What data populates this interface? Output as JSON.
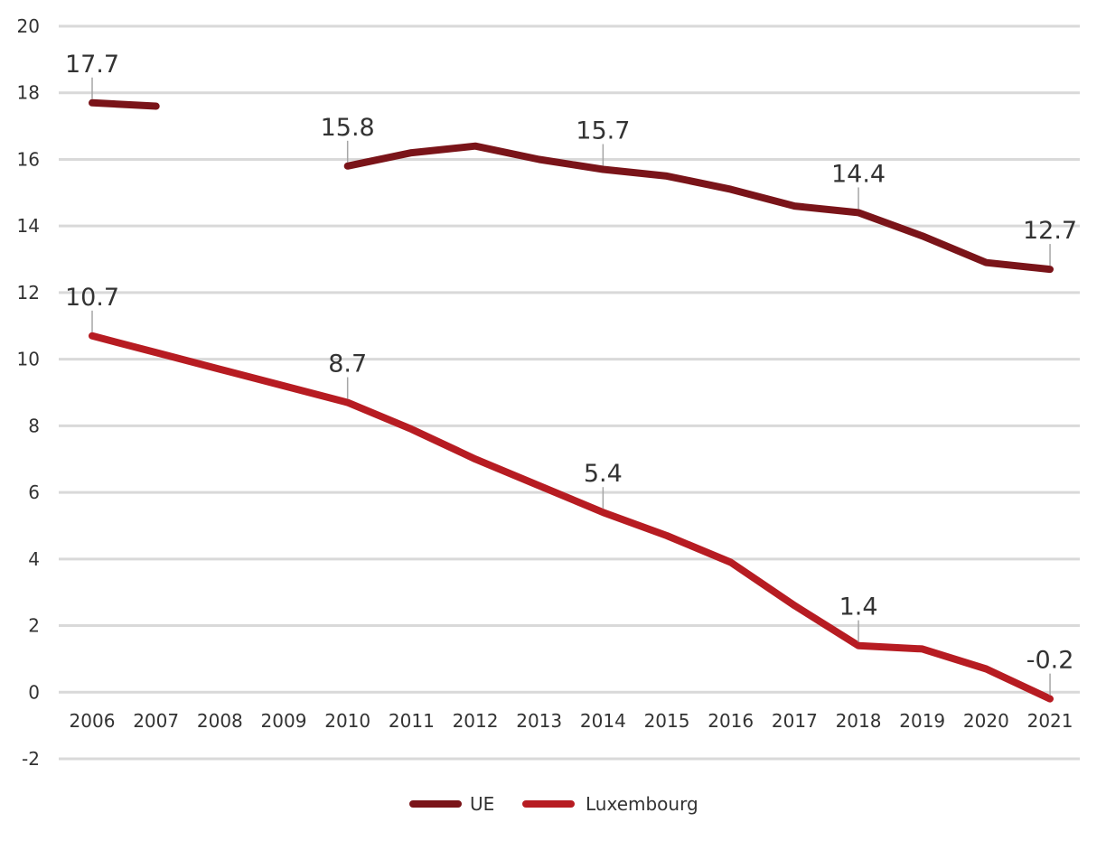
{
  "chart_data": {
    "type": "line",
    "title": "",
    "xlabel": "",
    "ylabel": "",
    "ylim": [
      -2,
      20
    ],
    "yticks": [
      "20",
      "18",
      "16",
      "14",
      "12",
      "10",
      "8",
      "6",
      "4",
      "2",
      "0",
      "-2"
    ],
    "categories": [
      "2006",
      "2007",
      "2008",
      "2009",
      "2010",
      "2011",
      "2012",
      "2013",
      "2014",
      "2015",
      "2016",
      "2017",
      "2018",
      "2019",
      "2020",
      "2021"
    ],
    "legend_position": "bottom-center",
    "grid": true,
    "series": [
      {
        "name": "UE",
        "color": "#7a1419",
        "values": [
          17.7,
          17.6,
          null,
          null,
          15.8,
          16.2,
          16.4,
          16.0,
          15.7,
          15.5,
          15.1,
          14.6,
          14.4,
          13.7,
          12.9,
          12.7
        ],
        "labels": [
          {
            "category": "2006",
            "text": "17.7"
          },
          {
            "category": "2010",
            "text": "15.8"
          },
          {
            "category": "2014",
            "text": "15.7"
          },
          {
            "category": "2018",
            "text": "14.4"
          },
          {
            "category": "2021",
            "text": "12.7"
          }
        ]
      },
      {
        "name": "Luxembourg",
        "color": "#b71c22",
        "values": [
          10.7,
          10.2,
          9.7,
          9.2,
          8.7,
          7.9,
          7.0,
          6.2,
          5.4,
          4.7,
          3.9,
          2.6,
          1.4,
          1.3,
          0.7,
          -0.2
        ],
        "labels": [
          {
            "category": "2006",
            "text": "10.7"
          },
          {
            "category": "2010",
            "text": "8.7"
          },
          {
            "category": "2014",
            "text": "5.4"
          },
          {
            "category": "2018",
            "text": "1.4"
          },
          {
            "category": "2021",
            "text": "-0.2"
          }
        ]
      }
    ]
  }
}
